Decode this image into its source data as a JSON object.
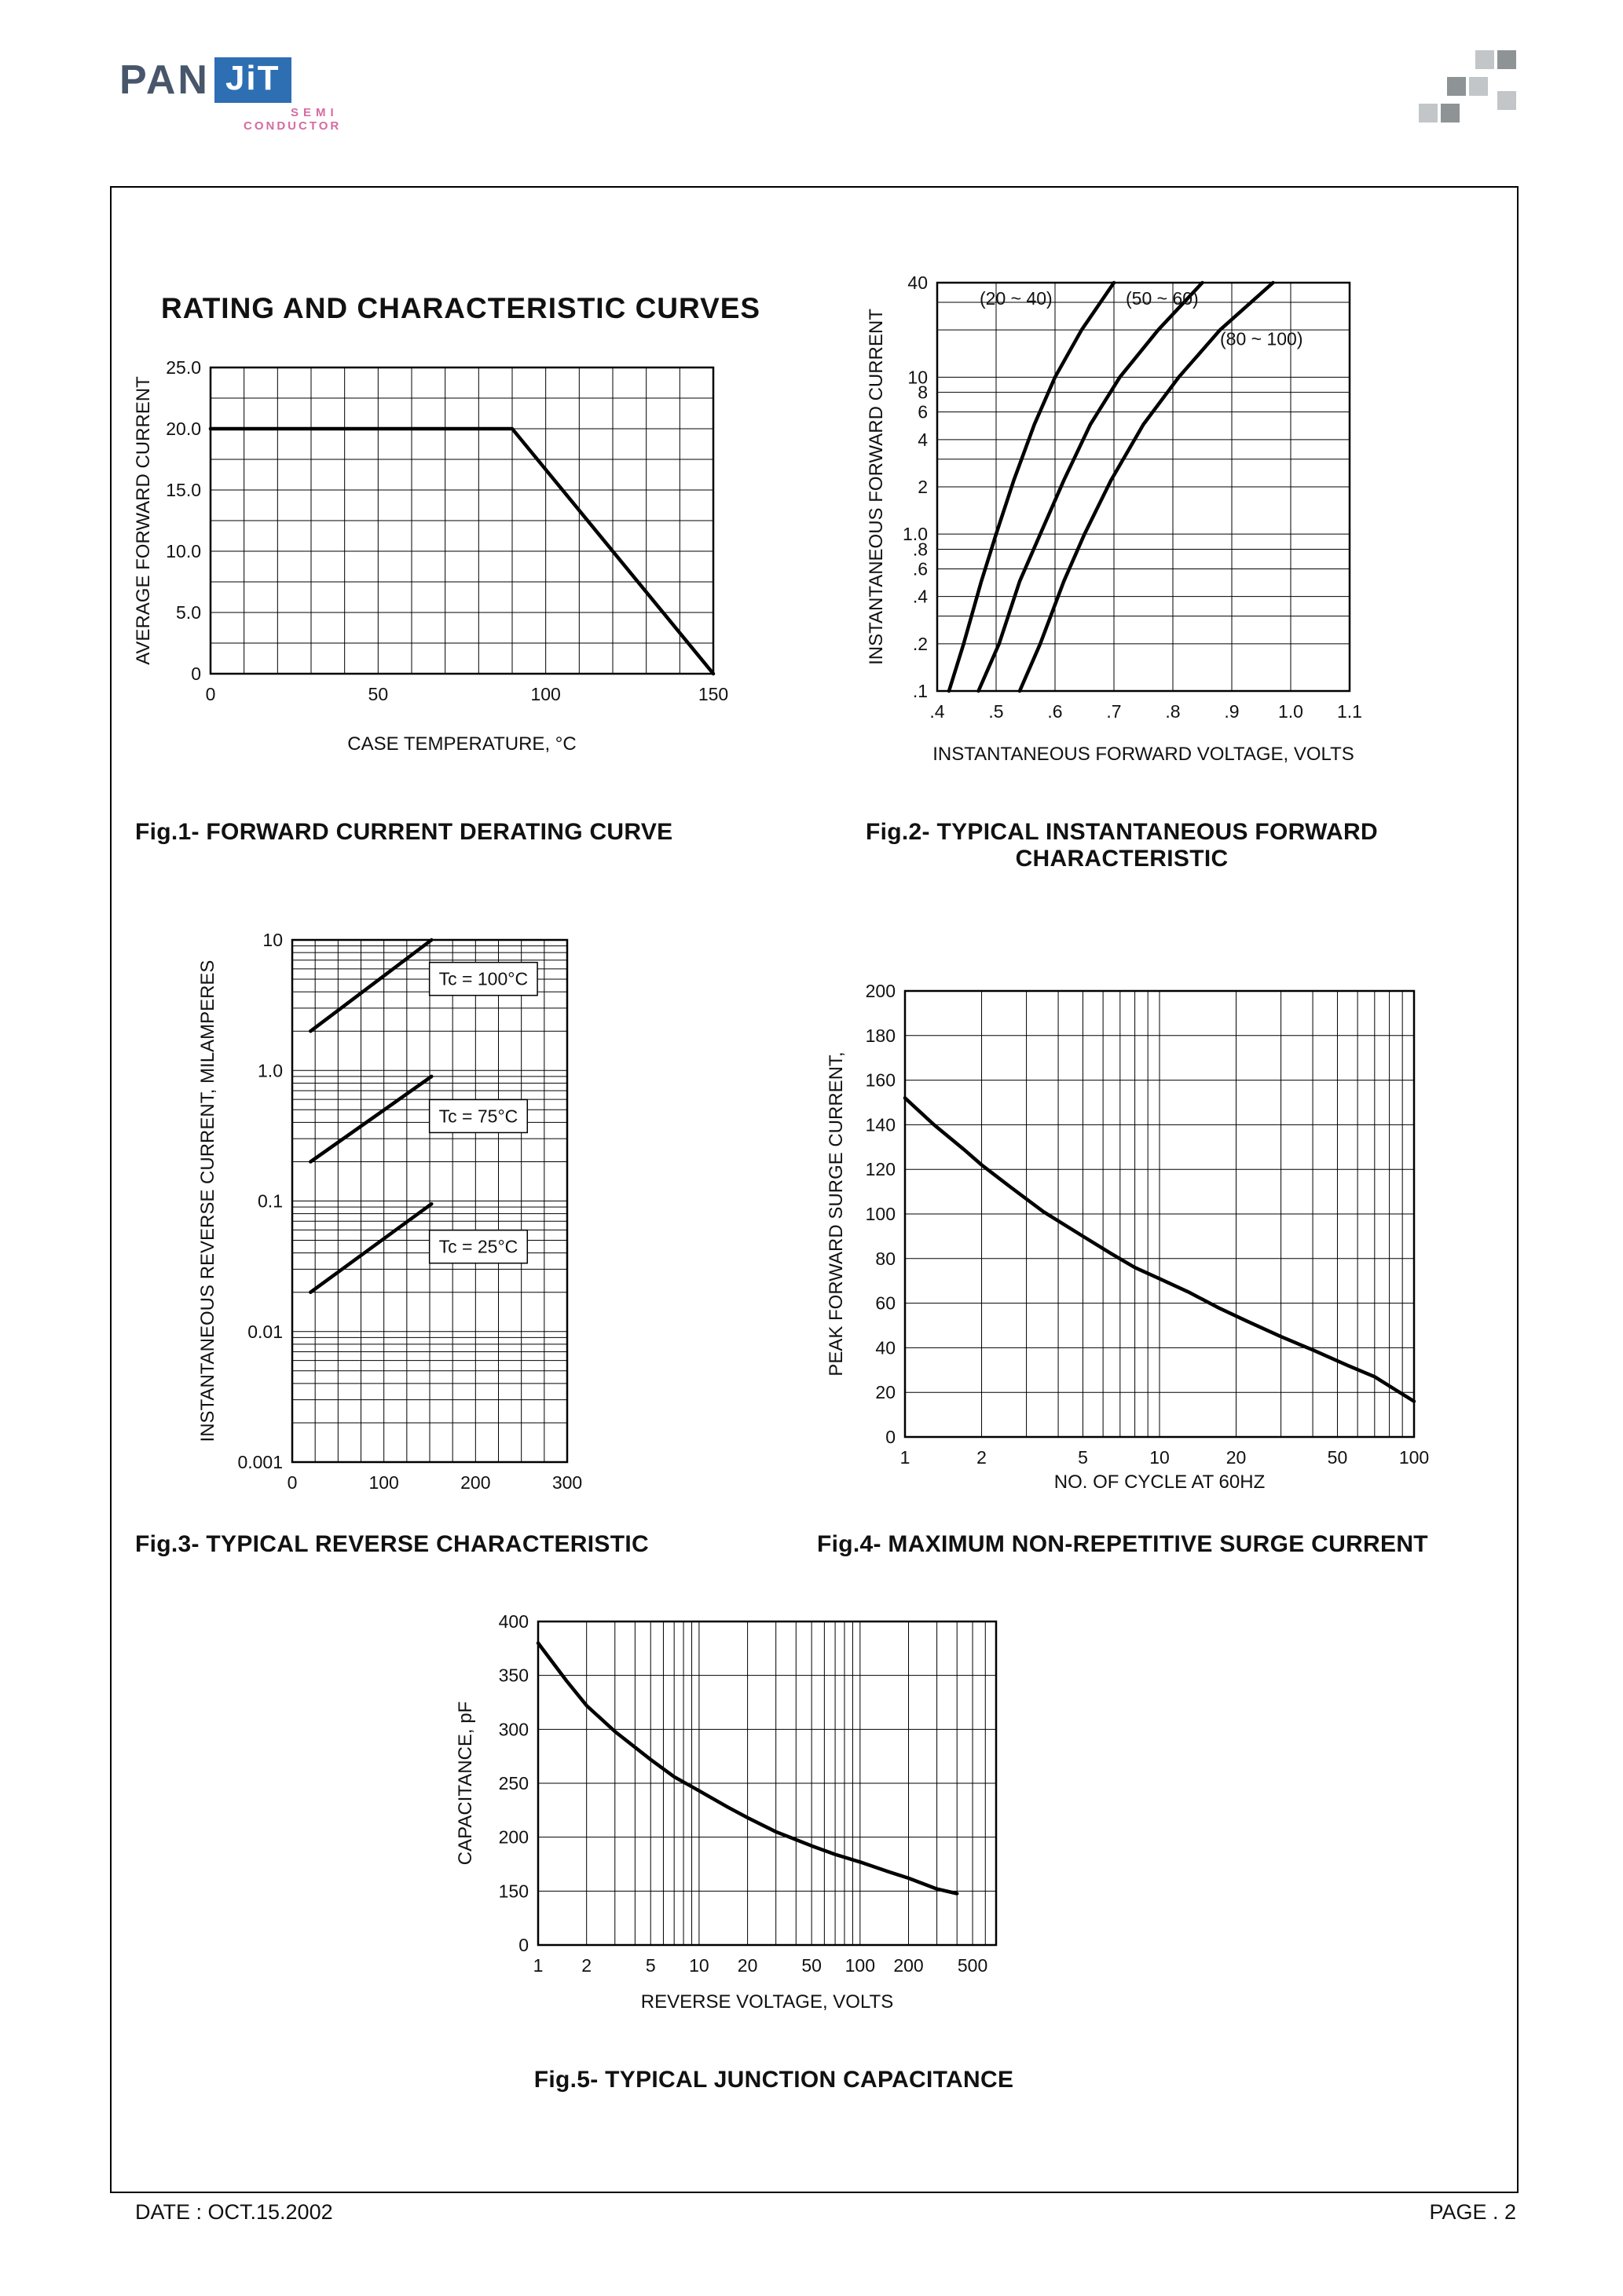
{
  "page": {
    "title": "RATING AND CHARACTERISTIC CURVES",
    "logo": {
      "pan": "PAN",
      "jit": "JiT",
      "semi": "SEMI",
      "conductor": "CONDUCTOR",
      "colors": {
        "brand_blue": "#2e6fb4",
        "brand_pink": "#d66ba0",
        "pan_gray": "#47566b"
      }
    },
    "footer": {
      "date": "DATE : OCT.15.2002",
      "page": "PAGE . 2"
    }
  },
  "chart_data": [
    {
      "id": "fig1",
      "type": "line",
      "caption": "Fig.1- FORWARD CURRENT DERATING CURVE",
      "xlabel": "CASE TEMPERATURE, °C",
      "ylabel": "AVERAGE FORWARD CURRENT",
      "xaxis": {
        "scale": "linear",
        "min": 0,
        "max": 150,
        "ticks": [
          {
            "v": 0,
            "label": "0"
          },
          {
            "v": 50,
            "label": "50"
          },
          {
            "v": 100,
            "label": "100"
          },
          {
            "v": 150,
            "label": "150"
          }
        ],
        "grid": [
          0,
          10,
          20,
          30,
          40,
          50,
          60,
          70,
          80,
          90,
          100,
          110,
          120,
          130,
          140,
          150
        ]
      },
      "yaxis": {
        "scale": "linear",
        "min": 0,
        "max": 25,
        "ticks": [
          {
            "v": 0,
            "label": "0"
          },
          {
            "v": 5,
            "label": "5.0"
          },
          {
            "v": 10,
            "label": "10.0"
          },
          {
            "v": 15,
            "label": "15.0"
          },
          {
            "v": 20,
            "label": "20.0"
          },
          {
            "v": 25,
            "label": "25.0"
          }
        ],
        "grid": [
          0,
          2.5,
          5,
          7.5,
          10,
          12.5,
          15,
          17.5,
          20,
          22.5,
          25
        ]
      },
      "series": [
        {
          "name": "derating-curve",
          "points": [
            [
              0,
              20
            ],
            [
              90,
              20
            ],
            [
              150,
              0
            ]
          ]
        }
      ]
    },
    {
      "id": "fig2",
      "type": "line",
      "caption": "Fig.2- TYPICAL INSTANTANEOUS FORWARD CHARACTERISTIC",
      "xlabel": "INSTANTANEOUS FORWARD VOLTAGE, VOLTS",
      "ylabel": "INSTANTANEOUS FORWARD CURRENT",
      "xaxis": {
        "scale": "linear",
        "min": 0.4,
        "max": 1.1,
        "ticks": [
          {
            "v": 0.4,
            "label": ".4"
          },
          {
            "v": 0.5,
            "label": ".5"
          },
          {
            "v": 0.6,
            "label": ".6"
          },
          {
            "v": 0.7,
            "label": ".7"
          },
          {
            "v": 0.8,
            "label": ".8"
          },
          {
            "v": 0.9,
            "label": ".9"
          },
          {
            "v": 1.0,
            "label": "1.0"
          },
          {
            "v": 1.1,
            "label": "1.1"
          }
        ],
        "grid": [
          0.4,
          0.5,
          0.6,
          0.7,
          0.8,
          0.9,
          1.0,
          1.1
        ]
      },
      "yaxis": {
        "scale": "log",
        "min": 0.1,
        "max": 40,
        "ticks": [
          {
            "v": 40,
            "label": "40"
          },
          {
            "v": 10,
            "label": "10"
          },
          {
            "v": 8,
            "label": "8"
          },
          {
            "v": 6,
            "label": "6"
          },
          {
            "v": 4,
            "label": "4"
          },
          {
            "v": 2,
            "label": "2"
          },
          {
            "v": 1,
            "label": "1.0"
          },
          {
            "v": 0.8,
            "label": ".8"
          },
          {
            "v": 0.6,
            "label": ".6"
          },
          {
            "v": 0.4,
            "label": ".4"
          },
          {
            "v": 0.2,
            "label": ".2"
          },
          {
            "v": 0.1,
            "label": ".1"
          }
        ],
        "grid": [
          0.1,
          0.2,
          0.3,
          0.4,
          0.6,
          0.8,
          1,
          2,
          3,
          4,
          6,
          8,
          10,
          20,
          30,
          40
        ]
      },
      "series": [
        {
          "name": "vrm-20-40",
          "points": [
            [
              0.42,
              0.1
            ],
            [
              0.445,
              0.2
            ],
            [
              0.475,
              0.5
            ],
            [
              0.5,
              1
            ],
            [
              0.53,
              2.2
            ],
            [
              0.565,
              5
            ],
            [
              0.6,
              10
            ],
            [
              0.645,
              20
            ],
            [
              0.7,
              40
            ]
          ]
        },
        {
          "name": "vrm-50-60",
          "points": [
            [
              0.47,
              0.1
            ],
            [
              0.505,
              0.2
            ],
            [
              0.54,
              0.5
            ],
            [
              0.575,
              1
            ],
            [
              0.615,
              2.2
            ],
            [
              0.66,
              5
            ],
            [
              0.71,
              10
            ],
            [
              0.775,
              20
            ],
            [
              0.85,
              40
            ]
          ]
        },
        {
          "name": "vrm-80-100",
          "points": [
            [
              0.54,
              0.1
            ],
            [
              0.575,
              0.2
            ],
            [
              0.615,
              0.5
            ],
            [
              0.65,
              1
            ],
            [
              0.695,
              2.2
            ],
            [
              0.75,
              5
            ],
            [
              0.81,
              10
            ],
            [
              0.88,
              20
            ],
            [
              0.97,
              40
            ]
          ]
        }
      ],
      "annotations": [
        {
          "text": "(20 ~ 40)",
          "x": 0.472,
          "y": 29
        },
        {
          "text": "(50 ~ 60)",
          "x": 0.72,
          "y": 29
        },
        {
          "text": "(80 ~ 100)",
          "x": 0.88,
          "y": 16
        }
      ]
    },
    {
      "id": "fig3",
      "type": "line",
      "caption": "Fig.3- TYPICAL REVERSE CHARACTERISTIC",
      "xlabel": "",
      "ylabel": "INSTANTANEOUS REVERSE CURRENT, MILAMPERES",
      "xaxis": {
        "scale": "linear",
        "min": 0,
        "max": 300,
        "ticks": [
          {
            "v": 0,
            "label": "0"
          },
          {
            "v": 100,
            "label": "100"
          },
          {
            "v": 200,
            "label": "200"
          },
          {
            "v": 300,
            "label": "300"
          }
        ],
        "grid": [
          0,
          25,
          50,
          75,
          100,
          125,
          150,
          175,
          200,
          225,
          250,
          275,
          300
        ]
      },
      "yaxis": {
        "scale": "log",
        "min": 0.001,
        "max": 10,
        "ticks": [
          {
            "v": 10,
            "label": "10"
          },
          {
            "v": 1,
            "label": "1.0"
          },
          {
            "v": 0.1,
            "label": "0.1"
          },
          {
            "v": 0.01,
            "label": "0.01"
          },
          {
            "v": 0.001,
            "label": "0.001"
          }
        ],
        "grid": [
          0.001,
          0.002,
          0.003,
          0.004,
          0.005,
          0.006,
          0.007,
          0.008,
          0.009,
          0.01,
          0.02,
          0.03,
          0.04,
          0.05,
          0.06,
          0.07,
          0.08,
          0.09,
          0.1,
          0.2,
          0.3,
          0.4,
          0.5,
          0.6,
          0.7,
          0.8,
          0.9,
          1,
          2,
          3,
          4,
          5,
          6,
          7,
          8,
          9,
          10
        ]
      },
      "series": [
        {
          "name": "tc-100c",
          "points": [
            [
              20,
              2
            ],
            [
              152,
              10
            ]
          ]
        },
        {
          "name": "tc-75c",
          "points": [
            [
              20,
              0.2
            ],
            [
              152,
              0.9
            ]
          ]
        },
        {
          "name": "tc-25c",
          "points": [
            [
              20,
              0.02
            ],
            [
              152,
              0.095
            ]
          ]
        }
      ],
      "annotations": [
        {
          "text": "Tc = 100°C",
          "x": 160,
          "y": 4.5,
          "boxed": true
        },
        {
          "text": "Tc = 75°C",
          "x": 160,
          "y": 0.4,
          "boxed": true
        },
        {
          "text": "Tc = 25°C",
          "x": 160,
          "y": 0.04,
          "boxed": true
        }
      ]
    },
    {
      "id": "fig4",
      "type": "line",
      "caption": "Fig.4- MAXIMUM NON-REPETITIVE SURGE CURRENT",
      "xlabel": "NO. OF CYCLE AT 60HZ",
      "ylabel": "PEAK FORWARD SURGE CURRENT,",
      "xaxis": {
        "scale": "log",
        "min": 1,
        "max": 100,
        "ticks": [
          {
            "v": 1,
            "label": "1"
          },
          {
            "v": 2,
            "label": "2"
          },
          {
            "v": 5,
            "label": "5"
          },
          {
            "v": 10,
            "label": "10"
          },
          {
            "v": 20,
            "label": "20"
          },
          {
            "v": 50,
            "label": "50"
          },
          {
            "v": 100,
            "label": "100"
          }
        ],
        "grid": [
          1,
          2,
          3,
          4,
          5,
          6,
          7,
          8,
          9,
          10,
          20,
          30,
          40,
          50,
          60,
          70,
          80,
          90,
          100
        ]
      },
      "yaxis": {
        "scale": "linear",
        "min": 0,
        "max": 200,
        "ticks": [
          {
            "v": 0,
            "label": "0"
          },
          {
            "v": 20,
            "label": "20"
          },
          {
            "v": 40,
            "label": "40"
          },
          {
            "v": 60,
            "label": "60"
          },
          {
            "v": 80,
            "label": "80"
          },
          {
            "v": 100,
            "label": "100"
          },
          {
            "v": 120,
            "label": "120"
          },
          {
            "v": 140,
            "label": "140"
          },
          {
            "v": 160,
            "label": "160"
          },
          {
            "v": 180,
            "label": "180"
          },
          {
            "v": 200,
            "label": "200"
          }
        ],
        "grid": [
          0,
          20,
          40,
          60,
          80,
          100,
          120,
          140,
          160,
          180,
          200
        ]
      },
      "series": [
        {
          "name": "surge-current",
          "points": [
            [
              1,
              152
            ],
            [
              1.3,
              140
            ],
            [
              1.7,
              129
            ],
            [
              2,
              122
            ],
            [
              2.6,
              112
            ],
            [
              3.5,
              101
            ],
            [
              5,
              90
            ],
            [
              6.5,
              82
            ],
            [
              8,
              76
            ],
            [
              10,
              71
            ],
            [
              13,
              65
            ],
            [
              17,
              58
            ],
            [
              22,
              52
            ],
            [
              30,
              45
            ],
            [
              40,
              39
            ],
            [
              55,
              32
            ],
            [
              70,
              27
            ],
            [
              85,
              21
            ],
            [
              100,
              16
            ]
          ]
        }
      ]
    },
    {
      "id": "fig5",
      "type": "line",
      "caption": "Fig.5- TYPICAL JUNCTION CAPACITANCE",
      "xlabel": "REVERSE VOLTAGE, VOLTS",
      "ylabel": "CAPACITANCE, pF",
      "xaxis": {
        "scale": "log",
        "min": 1,
        "max": 700,
        "ticks": [
          {
            "v": 1,
            "label": "1"
          },
          {
            "v": 2,
            "label": "2"
          },
          {
            "v": 5,
            "label": "5"
          },
          {
            "v": 10,
            "label": "10"
          },
          {
            "v": 20,
            "label": "20"
          },
          {
            "v": 50,
            "label": "50"
          },
          {
            "v": 100,
            "label": "100"
          },
          {
            "v": 200,
            "label": "200"
          },
          {
            "v": 500,
            "label": "500"
          }
        ],
        "grid": [
          1,
          2,
          3,
          4,
          5,
          6,
          7,
          8,
          9,
          10,
          20,
          30,
          40,
          50,
          60,
          70,
          80,
          90,
          100,
          200,
          300,
          400,
          500,
          600,
          700
        ]
      },
      "yaxis": {
        "scale": "ticks",
        "min": 0,
        "max": 400,
        "ticks": [
          {
            "v": 0,
            "label": "0"
          },
          {
            "v": 150,
            "label": "150"
          },
          {
            "v": 200,
            "label": "200"
          },
          {
            "v": 250,
            "label": "250"
          },
          {
            "v": 300,
            "label": "300"
          },
          {
            "v": 350,
            "label": "350"
          },
          {
            "v": 400,
            "label": "400"
          }
        ],
        "grid": [
          0,
          150,
          200,
          250,
          300,
          350,
          400
        ]
      },
      "series": [
        {
          "name": "junction-capacitance",
          "points": [
            [
              1,
              380
            ],
            [
              1.5,
              345
            ],
            [
              2,
              322
            ],
            [
              3,
              298
            ],
            [
              5,
              272
            ],
            [
              7,
              256
            ],
            [
              10,
              243
            ],
            [
              15,
              228
            ],
            [
              20,
              218
            ],
            [
              30,
              205
            ],
            [
              50,
              192
            ],
            [
              70,
              184
            ],
            [
              100,
              177
            ],
            [
              150,
              168
            ],
            [
              200,
              162
            ],
            [
              300,
              152
            ],
            [
              400,
              143
            ]
          ]
        }
      ]
    }
  ]
}
